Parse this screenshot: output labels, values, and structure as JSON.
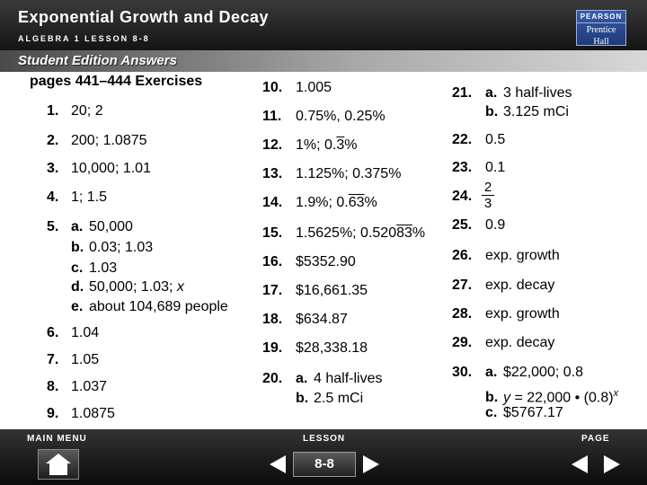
{
  "header": {
    "title": "Exponential Growth and Decay",
    "subtitle": "ALGEBRA 1 LESSON 8-8",
    "logo_line1": "PEARSON",
    "logo_line2": "Prentice",
    "logo_line3": "Hall"
  },
  "banner": {
    "label": "Student Edition Answers"
  },
  "pages_heading": "pages 441–444  Exercises",
  "col1": {
    "e1": {
      "num": "1.",
      "text": "20; 2"
    },
    "e2": {
      "num": "2.",
      "text": "200; 1.0875"
    },
    "e3": {
      "num": "3.",
      "text": "10,000; 1.01"
    },
    "e4": {
      "num": "4.",
      "text": "1; 1.5"
    },
    "e5": {
      "num": "5.",
      "a_l": "a.",
      "a": "50,000",
      "b_l": "b.",
      "b": "0.03; 1.03",
      "c_l": "c.",
      "c": "1.03",
      "d_l": "d.",
      "d_pre": "50,000; 1.03; ",
      "d_var": "x",
      "e_l": "e.",
      "e": "about 104,689 people"
    },
    "e6": {
      "num": "6.",
      "text": "1.04"
    },
    "e7": {
      "num": "7.",
      "text": "1.05"
    },
    "e8": {
      "num": "8.",
      "text": "1.037"
    },
    "e9": {
      "num": "9.",
      "text": "1.0875"
    }
  },
  "col2": {
    "e10": {
      "num": "10.",
      "text": "1.005"
    },
    "e11": {
      "num": "11.",
      "text": "0.75%, 0.25%"
    },
    "e12": {
      "num": "12.",
      "pre": "1%; 0.",
      "rep": "3",
      "post": "%"
    },
    "e13": {
      "num": "13.",
      "text": "1.125%; 0.375%"
    },
    "e14": {
      "num": "14.",
      "pre": "1.9%; 0.",
      "rep": "63",
      "post": "%"
    },
    "e15": {
      "num": "15.",
      "pre": "1.5625%; 0.520",
      "rep": "83",
      "post": "%"
    },
    "e16": {
      "num": "16.",
      "text": "$5352.90"
    },
    "e17": {
      "num": "17.",
      "text": "$16,661.35"
    },
    "e18": {
      "num": "18.",
      "text": "$634.87"
    },
    "e19": {
      "num": "19.",
      "text": "$28,338.18"
    },
    "e20": {
      "num": "20.",
      "a_l": "a.",
      "a": "4 half-lives",
      "b_l": "b.",
      "b": "2.5 mCi"
    }
  },
  "col3": {
    "e21": {
      "num": "21.",
      "a_l": "a.",
      "a": "3 half-lives",
      "b_l": "b.",
      "b": "3.125 mCi"
    },
    "e22": {
      "num": "22.",
      "text": "0.5"
    },
    "e23": {
      "num": "23.",
      "text": "0.1"
    },
    "e24": {
      "num": "24.",
      "numerator": "2",
      "denominator": "3"
    },
    "e25": {
      "num": "25.",
      "text": "0.9"
    },
    "e26": {
      "num": "26.",
      "text": "exp. growth"
    },
    "e27": {
      "num": "27.",
      "text": "exp. decay"
    },
    "e28": {
      "num": "28.",
      "text": "exp. growth"
    },
    "e29": {
      "num": "29.",
      "text": "exp. decay"
    },
    "e30": {
      "num": "30.",
      "a_l": "a.",
      "a": "$22,000; 0.8",
      "b_l": "b.",
      "b_y": "y",
      "b_mid": " = 22,000 • (0.8)",
      "b_x": "x",
      "c_l": "c.",
      "c": "$5767.17"
    }
  },
  "footer": {
    "main_menu": "MAIN MENU",
    "lesson": "LESSON",
    "page": "PAGE",
    "lesson_number": "8-8"
  },
  "icons": {
    "home": "home-icon",
    "prev": "previous-page-icon",
    "next": "next-page-icon"
  }
}
